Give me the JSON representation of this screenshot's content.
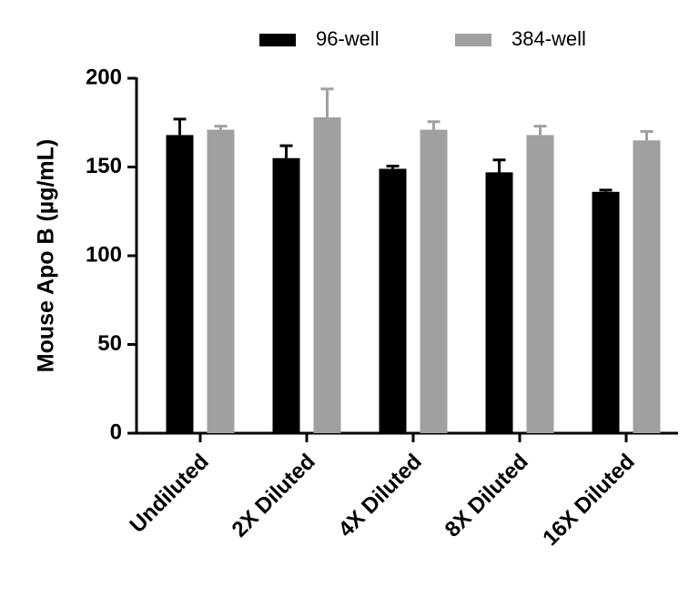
{
  "chart_data": {
    "type": "bar",
    "y_label": "Mouse Apo B (µg/mL)",
    "categories": [
      "Undiluted",
      "2X Diluted",
      "4X Diluted",
      "8X Diluted",
      "16X Diluted"
    ],
    "series": [
      {
        "name": "96-well",
        "color": "#000000",
        "values": [
          168,
          155,
          149,
          147,
          136
        ],
        "errors": [
          9,
          7,
          1.5,
          7,
          1
        ]
      },
      {
        "name": "384-well",
        "color": "#a0a0a0",
        "values": [
          171,
          178,
          171,
          168,
          165
        ],
        "errors": [
          2,
          16,
          4.5,
          5,
          5
        ]
      }
    ],
    "ylim": [
      0,
      200
    ],
    "yticks": [
      0,
      50,
      100,
      150,
      200
    ],
    "legend": "top"
  }
}
